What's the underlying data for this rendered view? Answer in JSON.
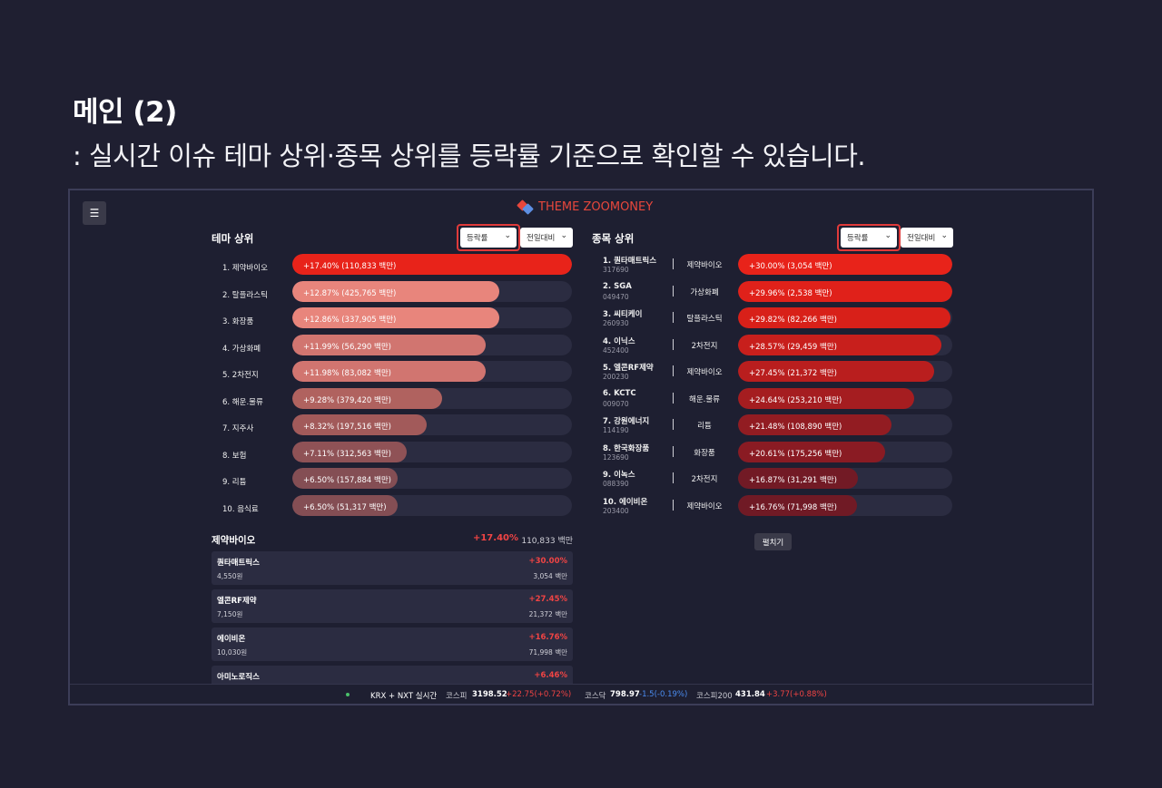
{
  "page": {
    "heading": "메인 (2)",
    "subheading": ": 실시간 이슈 테마 상위·종목 상위를 등락률 기준으로 확인할 수 있습니다."
  },
  "app": {
    "menu_icon": "☰",
    "logo_text": "THEME ZOOMONEY",
    "colors": {
      "accent": "#e8473c",
      "logo_blue": "#5d8fe3",
      "up": "#f04444",
      "down": "#4a8cf0",
      "highlight_box": "#e03a3a"
    }
  },
  "theme_panel": {
    "title": "테마 상위",
    "sort_select": "등락률",
    "compare_select": "전일대비",
    "rows": [
      {
        "rank_name": "1. 제약바이오",
        "label": "+17.40% (110,833 백만)",
        "fill": 1.0,
        "color": "#e8231a"
      },
      {
        "rank_name": "2. 탈플라스틱",
        "label": "+12.87% (425,765 백만)",
        "fill": 0.74,
        "color": "#e8857c"
      },
      {
        "rank_name": "3. 화장품",
        "label": "+12.86% (337,905 백만)",
        "fill": 0.74,
        "color": "#e8857c"
      },
      {
        "rank_name": "4. 가상화폐",
        "label": "+11.99% (56,290 백만)",
        "fill": 0.69,
        "color": "#d17570"
      },
      {
        "rank_name": "5. 2차전지",
        "label": "+11.98% (83,082 백만)",
        "fill": 0.69,
        "color": "#d17570"
      },
      {
        "rank_name": "6. 해운.물류",
        "label": "+9.28% (379,420 백만)",
        "fill": 0.535,
        "color": "#b0625f"
      },
      {
        "rank_name": "7. 지주사",
        "label": "+8.32% (197,516 백만)",
        "fill": 0.48,
        "color": "#a25a5a"
      },
      {
        "rank_name": "8. 보험",
        "label": "+7.11% (312,563 백만)",
        "fill": 0.41,
        "color": "#8f5256"
      },
      {
        "rank_name": "9. 리튬",
        "label": "+6.50% (157,884 백만)",
        "fill": 0.375,
        "color": "#844e54"
      },
      {
        "rank_name": "10. 음식료",
        "label": "+6.50% (51,317 백만)",
        "fill": 0.375,
        "color": "#844e54"
      }
    ]
  },
  "stock_panel": {
    "title": "종목 상위",
    "sort_select": "등락률",
    "compare_select": "전일대비",
    "rows": [
      {
        "name": "1. 퀀타매트릭스",
        "code": "317690",
        "theme": "제약바이오",
        "label": "+30.00% (3,054 백만)",
        "fill": 1.0,
        "color": "#e8231a"
      },
      {
        "name": "2. SGA",
        "code": "049470",
        "theme": "가상화폐",
        "label": "+29.96% (2,538 백만)",
        "fill": 0.998,
        "color": "#e0211a"
      },
      {
        "name": "3. 씨티케이",
        "code": "260930",
        "theme": "탈플라스틱",
        "label": "+29.82% (82,266 백만)",
        "fill": 0.99,
        "color": "#d82019"
      },
      {
        "name": "4. 이닉스",
        "code": "452400",
        "theme": "2차전지",
        "label": "+28.57% (29,459 백만)",
        "fill": 0.95,
        "color": "#c81f1c"
      },
      {
        "name": "5. 엘콘RF제약",
        "code": "200230",
        "theme": "제약바이오",
        "label": "+27.45% (21,372 백만)",
        "fill": 0.915,
        "color": "#b91e1e"
      },
      {
        "name": "6. KCTC",
        "code": "009070",
        "theme": "해운.물류",
        "label": "+24.64% (253,210 백만)",
        "fill": 0.82,
        "color": "#a51d20"
      },
      {
        "name": "7. 강원에너지",
        "code": "114190",
        "theme": "리튬",
        "label": "+21.48% (108,890 백만)",
        "fill": 0.715,
        "color": "#921c22"
      },
      {
        "name": "8. 한국화장품",
        "code": "123690",
        "theme": "화장품",
        "label": "+20.61% (175,256 백만)",
        "fill": 0.685,
        "color": "#8a1b23"
      },
      {
        "name": "9. 이녹스",
        "code": "088390",
        "theme": "2차전지",
        "label": "+16.87% (31,291 백만)",
        "fill": 0.56,
        "color": "#721a25"
      },
      {
        "name": "10. 에이비온",
        "code": "203400",
        "theme": "제약바이오",
        "label": "+16.76% (71,998 백만)",
        "fill": 0.555,
        "color": "#701a25"
      }
    ],
    "expand_label": "펼치기"
  },
  "detail": {
    "title": "제약바이오",
    "rate": "+17.40%",
    "amount": "110,833 백만",
    "cards": [
      {
        "name": "퀀타매트릭스",
        "price": "4,550원",
        "rate": "+30.00%",
        "amount": "3,054 백만"
      },
      {
        "name": "엘콘RF제약",
        "price": "7,150원",
        "rate": "+27.45%",
        "amount": "21,372 백만"
      },
      {
        "name": "에이비온",
        "price": "10,030원",
        "rate": "+16.76%",
        "amount": "71,998 백만"
      },
      {
        "name": "아미노로직스",
        "price": "",
        "rate": "+6.46%",
        "amount": ""
      }
    ]
  },
  "ticker": {
    "source": "KRX + NXT 실시간",
    "kospi_label": "코스피",
    "kospi_value": "3198.52",
    "kospi_change": "+22.75(+0.72%)",
    "kosdaq_label": "코스닥",
    "kosdaq_value": "798.97",
    "kosdaq_change": "-1.5(-0.19%)",
    "kospi200_label": "코스피200",
    "kospi200_value": "431.84",
    "kospi200_change": "+3.77(+0.88%)"
  }
}
